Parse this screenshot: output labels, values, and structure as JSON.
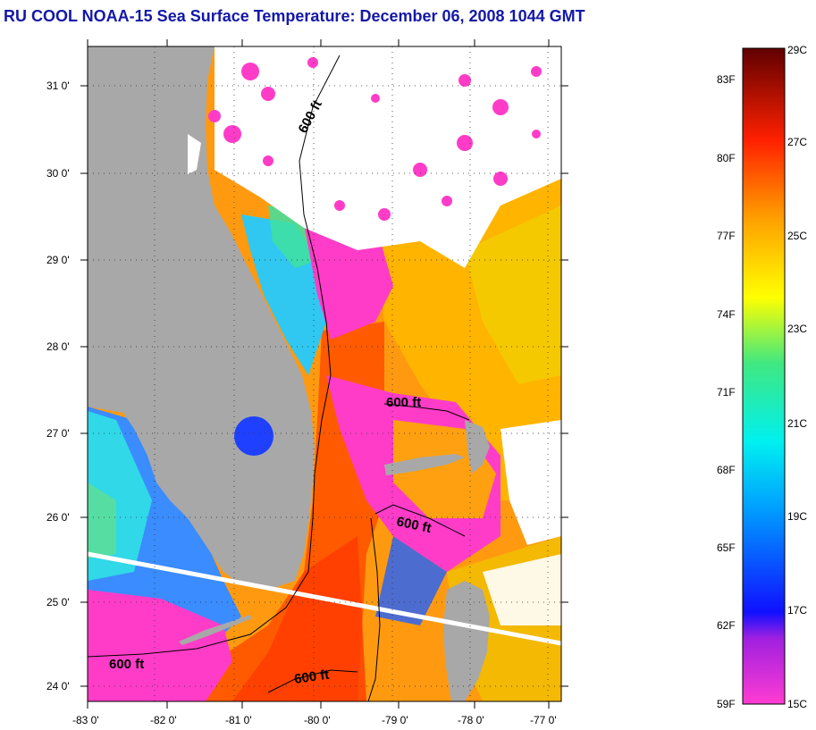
{
  "title": "RU COOL  NOAA-15  Sea Surface Temperature:  December 06, 2008 1044 GMT",
  "map": {
    "lat_labels": [
      "31 0'",
      "30 0'",
      "29 0'",
      "28 0'",
      "27 0'",
      "26 0'",
      "25 0'",
      "24 0'"
    ],
    "lon_labels": [
      "-83 0'",
      "-82 0'",
      "-81 0'",
      "-80 0'",
      "-79 0'",
      "-78 0'",
      "-77 0'"
    ],
    "contour_labels": [
      "600 ft",
      "600 ft",
      "600 ft",
      "600 ft",
      "600 ft"
    ]
  },
  "colorbar": {
    "fahrenheit_labels": [
      "83F",
      "80F",
      "77F",
      "74F",
      "71F",
      "68F",
      "65F",
      "62F",
      "59F"
    ],
    "celsius_labels": [
      "29C",
      "27C",
      "25C",
      "23C",
      "21C",
      "19C",
      "17C",
      "15C"
    ]
  },
  "colors": {
    "title": "#1418a8",
    "land": "#a8a8a8",
    "cloud": "#ffffff",
    "warm_stream": "#ff6a00",
    "shelf_pink": "#ff3cc8"
  }
}
